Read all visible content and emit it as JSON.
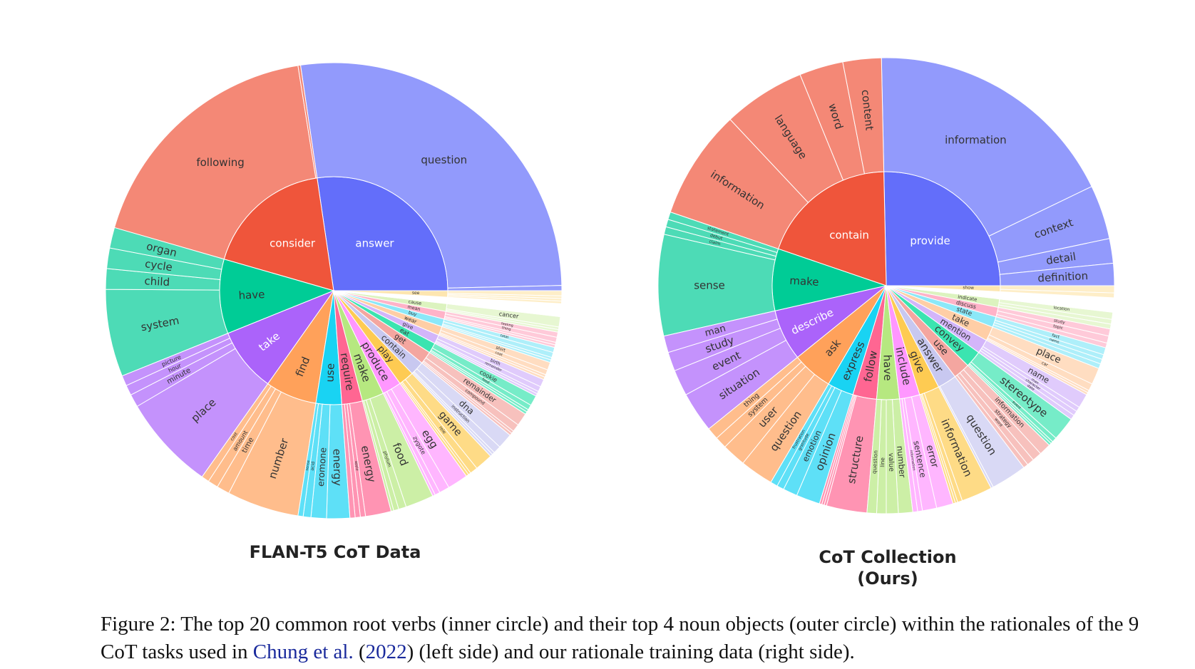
{
  "chart_data": [
    {
      "type": "sunburst",
      "title": "FLAN-T5  CoT Data",
      "center": "",
      "rings": "inner: root verbs, outer: noun objects",
      "nodes": [
        {
          "verb": "answer",
          "color": "#636efa",
          "value": 150,
          "children": [
            {
              "name": "question",
              "value": 148
            },
            {
              "name": "",
              "value": 2
            }
          ]
        },
        {
          "verb": "consider",
          "color": "#ef553b",
          "value": 100,
          "children": [
            {
              "name": "following",
              "value": 99
            },
            {
              "name": "",
              "value": 1
            }
          ]
        },
        {
          "verb": "have",
          "color": "#00cc96",
          "value": 58,
          "children": [
            {
              "name": "system",
              "value": 34
            },
            {
              "name": "child",
              "value": 8
            },
            {
              "name": "cycle",
              "value": 8
            },
            {
              "name": "organ",
              "value": 8
            }
          ]
        },
        {
          "verb": "take",
          "color": "#ab63fa",
          "value": 50,
          "children": [
            {
              "name": "place",
              "value": 37
            },
            {
              "name": "minute",
              "value": 5
            },
            {
              "name": "hour",
              "value": 4
            },
            {
              "name": "picture",
              "value": 4
            }
          ]
        },
        {
          "verb": "find",
          "color": "#ffa15a",
          "value": 40,
          "children": [
            {
              "name": "number",
              "value": 28
            },
            {
              "name": "time",
              "value": 5
            },
            {
              "name": "amount",
              "value": 4
            },
            {
              "name": "cost",
              "value": 3
            }
          ]
        },
        {
          "verb": "use",
          "color": "#19d3f3",
          "value": 20,
          "children": [
            {
              "name": "energy",
              "value": 9
            },
            {
              "name": "eromone",
              "value": 6
            },
            {
              "name": "acid",
              "value": 3
            },
            {
              "name": "sense",
              "value": 2
            }
          ]
        },
        {
          "verb": "require",
          "color": "#ff6692",
          "value": 16,
          "children": [
            {
              "name": "energy",
              "value": 10
            },
            {
              "name": "apple",
              "value": 2
            },
            {
              "name": "",
              "value": 2
            },
            {
              "name": "",
              "value": 2
            }
          ]
        },
        {
          "verb": "make",
          "color": "#b6e880",
          "value": 17,
          "children": [
            {
              "name": "food",
              "value": 11
            },
            {
              "name": "phylum",
              "value": 3
            },
            {
              "name": "",
              "value": 2
            },
            {
              "name": "",
              "value": 1
            }
          ]
        },
        {
          "verb": "produce",
          "color": "#ff97ff",
          "value": 15,
          "children": [
            {
              "name": "egg",
              "value": 8
            },
            {
              "name": "zygote",
              "value": 4
            },
            {
              "name": "",
              "value": 2
            },
            {
              "name": "",
              "value": 1
            }
          ]
        },
        {
          "verb": "play",
          "color": "#fecb52",
          "value": 12,
          "children": [
            {
              "name": "game",
              "value": 7
            },
            {
              "name": "role",
              "value": 3
            },
            {
              "name": "",
              "value": 1
            },
            {
              "name": "",
              "value": 1
            }
          ]
        },
        {
          "verb": "contain",
          "color": "#c8c8f0",
          "value": 11,
          "children": [
            {
              "name": "dna",
              "value": 6
            },
            {
              "name": "instruction",
              "value": 3
            },
            {
              "name": "",
              "value": 1
            },
            {
              "name": "",
              "value": 1
            }
          ]
        },
        {
          "verb": "get",
          "color": "#f4a6a0",
          "value": 10,
          "children": [
            {
              "name": "remainder",
              "value": 5
            },
            {
              "name": "compound",
              "value": 3
            },
            {
              "name": "",
              "value": 1
            },
            {
              "name": "",
              "value": 1
            }
          ]
        },
        {
          "verb": "eat",
          "color": "#3be4b0",
          "value": 8,
          "children": [
            {
              "name": "cookie",
              "value": 4
            },
            {
              "name": "food",
              "value": 2
            },
            {
              "name": "",
              "value": 1
            },
            {
              "name": "",
              "value": 1
            }
          ]
        },
        {
          "verb": "give",
          "color": "#d3b5fa",
          "value": 7,
          "children": [
            {
              "name": "birth",
              "value": 3
            },
            {
              "name": "remainder",
              "value": 2
            },
            {
              "name": "",
              "value": 1
            },
            {
              "name": "",
              "value": 1
            }
          ]
        },
        {
          "verb": "wear",
          "color": "#ffcea6",
          "value": 7,
          "children": [
            {
              "name": "shirt",
              "value": 3
            },
            {
              "name": "coat",
              "value": 2
            },
            {
              "name": "",
              "value": 1
            },
            {
              "name": "",
              "value": 1
            }
          ]
        },
        {
          "verb": "buy",
          "color": "#8be8f8",
          "value": 6,
          "children": [
            {
              "name": "total",
              "value": 2
            },
            {
              "name": "",
              "value": 2
            },
            {
              "name": "",
              "value": 1
            },
            {
              "name": "",
              "value": 1
            }
          ]
        },
        {
          "verb": "mean",
          "color": "#ffb3c8",
          "value": 6,
          "children": [
            {
              "name": "feeling",
              "value": 2
            },
            {
              "name": "thing",
              "value": 2
            },
            {
              "name": "",
              "value": 1
            },
            {
              "name": "",
              "value": 1
            }
          ]
        },
        {
          "verb": "cause",
          "color": "#dcf3bf",
          "value": 6,
          "children": [
            {
              "name": "cancer",
              "value": 4
            },
            {
              "name": "",
              "value": 1
            },
            {
              "name": "",
              "value": 1
            }
          ]
        },
        {
          "verb": "need",
          "color": "#ffffff",
          "value": 5,
          "children": [
            {
              "name": "",
              "value": 5
            }
          ]
        },
        {
          "verb": "see",
          "color": "#fde6b0",
          "value": 5,
          "children": [
            {
              "name": "",
              "value": 2
            },
            {
              "name": "",
              "value": 1
            },
            {
              "name": "",
              "value": 1
            },
            {
              "name": "",
              "value": 1
            }
          ]
        }
      ]
    },
    {
      "type": "sunburst",
      "title": "CoT Collection (Ours)",
      "center": "",
      "rings": "inner: root verbs, outer: noun objects",
      "nodes": [
        {
          "verb": "provide",
          "color": "#636efa",
          "value": 150,
          "children": [
            {
              "name": "information",
              "value": 104
            },
            {
              "name": "context",
              "value": 22
            },
            {
              "name": "detail",
              "value": 10
            },
            {
              "name": "definition",
              "value": 9
            }
          ]
        },
        {
          "verb": "contain",
          "color": "#ef553b",
          "value": 115,
          "children": [
            {
              "name": "information",
              "value": 40
            },
            {
              "name": "language",
              "value": 30
            },
            {
              "name": "word",
              "value": 16
            },
            {
              "name": "content",
              "value": 14
            }
          ]
        },
        {
          "verb": "make",
          "color": "#00cc96",
          "value": 52,
          "children": [
            {
              "name": "sense",
              "value": 40
            },
            {
              "name": "claim",
              "value": 3
            },
            {
              "name": "debut",
              "value": 3
            },
            {
              "name": "statement",
              "value": 3
            }
          ]
        },
        {
          "verb": "describe",
          "color": "#ab63fa",
          "value": 43,
          "children": [
            {
              "name": "situation",
              "value": 17
            },
            {
              "name": "event",
              "value": 11
            },
            {
              "name": "study",
              "value": 8
            },
            {
              "name": "man",
              "value": 7
            }
          ]
        },
        {
          "verb": "ask",
          "color": "#ffa15a",
          "value": 34,
          "children": [
            {
              "name": "question",
              "value": 14
            },
            {
              "name": "user",
              "value": 10
            },
            {
              "name": "system",
              "value": 5
            },
            {
              "name": "thing",
              "value": 5
            }
          ]
        },
        {
          "verb": "express",
          "color": "#19d3f3",
          "value": 22,
          "children": [
            {
              "name": "opinion",
              "value": 10
            },
            {
              "name": "emotion",
              "value": 6
            },
            {
              "name": "gratitude",
              "value": 3
            },
            {
              "name": "frustration",
              "value": 3
            }
          ]
        },
        {
          "verb": "follow",
          "color": "#ff6692",
          "value": 20,
          "children": [
            {
              "name": "structure",
              "value": 17
            },
            {
              "name": "",
              "value": 1
            },
            {
              "name": "",
              "value": 1
            },
            {
              "name": "",
              "value": 1
            }
          ]
        },
        {
          "verb": "have",
          "color": "#b6e880",
          "value": 19,
          "children": [
            {
              "name": "number",
              "value": 6
            },
            {
              "name": "value",
              "value": 5
            },
            {
              "name": "line",
              "value": 4
            },
            {
              "name": "question",
              "value": 4
            }
          ]
        },
        {
          "verb": "include",
          "color": "#ff97ff",
          "value": 17,
          "children": [
            {
              "name": "error",
              "value": 7
            },
            {
              "name": "sentence",
              "value": 6
            },
            {
              "name": "information",
              "value": 2
            },
            {
              "name": "",
              "value": 2
            }
          ]
        },
        {
          "verb": "give",
          "color": "#fecb52",
          "value": 17,
          "children": [
            {
              "name": "information",
              "value": 13
            },
            {
              "name": "",
              "value": 2
            },
            {
              "name": "",
              "value": 1
            },
            {
              "name": "",
              "value": 1
            }
          ]
        },
        {
          "verb": "answer",
          "color": "#c8c8f0",
          "value": 16,
          "children": [
            {
              "name": "question",
              "value": 15
            },
            {
              "name": "",
              "value": 1
            }
          ]
        },
        {
          "verb": "use",
          "color": "#f4a6a0",
          "value": 14,
          "children": [
            {
              "name": "information",
              "value": 5
            },
            {
              "name": "strategy",
              "value": 4
            },
            {
              "name": "word",
              "value": 3
            },
            {
              "name": "",
              "value": 2
            }
          ]
        },
        {
          "verb": "convey",
          "color": "#3be4b0",
          "value": 14,
          "children": [
            {
              "name": "stereotype",
              "value": 10
            },
            {
              "name": "event",
              "value": 2
            },
            {
              "name": "",
              "value": 1
            },
            {
              "name": "",
              "value": 1
            }
          ]
        },
        {
          "verb": "mention",
          "color": "#d3b5fa",
          "value": 12,
          "children": [
            {
              "name": "name",
              "value": 6
            },
            {
              "name": "man",
              "value": 2
            },
            {
              "name": "character",
              "value": 2
            },
            {
              "name": "date",
              "value": 2
            }
          ]
        },
        {
          "verb": "take",
          "color": "#ffcea6",
          "value": 12,
          "children": [
            {
              "name": "place",
              "value": 7
            },
            {
              "name": "car",
              "value": 3
            },
            {
              "name": "",
              "value": 1
            },
            {
              "name": "",
              "value": 1
            }
          ]
        },
        {
          "verb": "state",
          "color": "#8be8f8",
          "value": 9,
          "children": [
            {
              "name": "fact",
              "value": 3
            },
            {
              "name": "name",
              "value": 2
            },
            {
              "name": "",
              "value": 2
            },
            {
              "name": "",
              "value": 2
            }
          ]
        },
        {
          "verb": "discuss",
          "color": "#ffb3c8",
          "value": 8,
          "children": [
            {
              "name": "study",
              "value": 3
            },
            {
              "name": "topic",
              "value": 3
            },
            {
              "name": "",
              "value": 2
            }
          ]
        },
        {
          "verb": "indicate",
          "color": "#dcf3bf",
          "value": 7,
          "children": [
            {
              "name": "location",
              "value": 3
            },
            {
              "name": "",
              "value": 2
            },
            {
              "name": "",
              "value": 2
            }
          ]
        },
        {
          "verb": "need",
          "color": "#ffffff",
          "value": 6,
          "children": [
            {
              "name": "",
              "value": 6
            }
          ]
        },
        {
          "verb": "show",
          "color": "#fde6b0",
          "value": 5,
          "children": [
            {
              "name": "",
              "value": 3
            },
            {
              "name": "",
              "value": 2
            }
          ]
        }
      ]
    }
  ],
  "caption": {
    "prefix": "Figure 2: The top 20 common root verbs (inner circle) and their top 4 noun objects (outer circle) within the rationales of the 9 CoT tasks used in ",
    "cite_author": "Chung et al.",
    "cite_open": " (",
    "cite_year": "2022",
    "suffix": ") (left side) and our rationale training data (right side)."
  }
}
